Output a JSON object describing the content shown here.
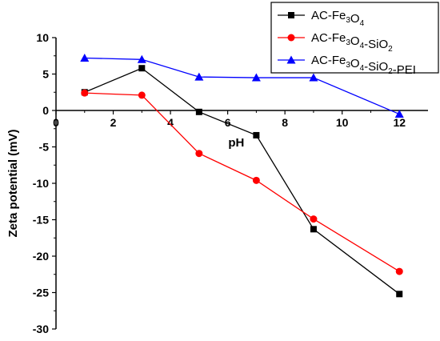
{
  "chart_data": {
    "type": "line",
    "xlabel": "pH",
    "ylabel": "Zeta potential (mV)",
    "xlim": [
      0,
      13
    ],
    "ylim": [
      -30,
      10
    ],
    "xticks": [
      0,
      2,
      4,
      6,
      8,
      10,
      12
    ],
    "yticks": [
      10,
      5,
      0,
      -5,
      -10,
      -15,
      -20,
      -25,
      -30
    ],
    "x_tick_labels": [
      "0",
      "2",
      "4",
      "6",
      "8",
      "10",
      "12"
    ],
    "y_tick_labels": [
      "10",
      "5",
      "0",
      "-5",
      "-10",
      "-15",
      "-20",
      "-25",
      "-30"
    ],
    "x_axis_position": "y=0",
    "legend_position": "top-right",
    "grid": false,
    "series": [
      {
        "name": "AC-Fe3O4",
        "label_parts": [
          [
            "AC-Fe",
            false
          ],
          [
            "3",
            true
          ],
          [
            "O",
            false
          ],
          [
            "4",
            true
          ]
        ],
        "color": "#000000",
        "marker": "square",
        "x": [
          1,
          3,
          5,
          7,
          9,
          12
        ],
        "y": [
          2.5,
          5.8,
          -0.2,
          -3.4,
          -16.3,
          -25.2
        ]
      },
      {
        "name": "AC-Fe3O4-SiO2",
        "label_parts": [
          [
            "AC-Fe",
            false
          ],
          [
            "3",
            true
          ],
          [
            "O",
            false
          ],
          [
            "4",
            true
          ],
          [
            "-SiO",
            false
          ],
          [
            "2",
            true
          ]
        ],
        "color": "#ff0000",
        "marker": "circle",
        "x": [
          1,
          3,
          5,
          7,
          9,
          12
        ],
        "y": [
          2.4,
          2.1,
          -5.9,
          -9.6,
          -14.9,
          -22.1
        ]
      },
      {
        "name": "AC-Fe3O4-SiO2-PEI",
        "label_parts": [
          [
            "AC-Fe",
            false
          ],
          [
            "3",
            true
          ],
          [
            "O",
            false
          ],
          [
            "4",
            true
          ],
          [
            "-SiO",
            false
          ],
          [
            "2",
            true
          ],
          [
            "-PEI",
            false
          ]
        ],
        "color": "#0000ff",
        "marker": "triangle",
        "x": [
          1,
          3,
          5,
          7,
          9,
          12
        ],
        "y": [
          7.2,
          7.0,
          4.6,
          4.5,
          4.5,
          -0.5
        ]
      }
    ]
  }
}
